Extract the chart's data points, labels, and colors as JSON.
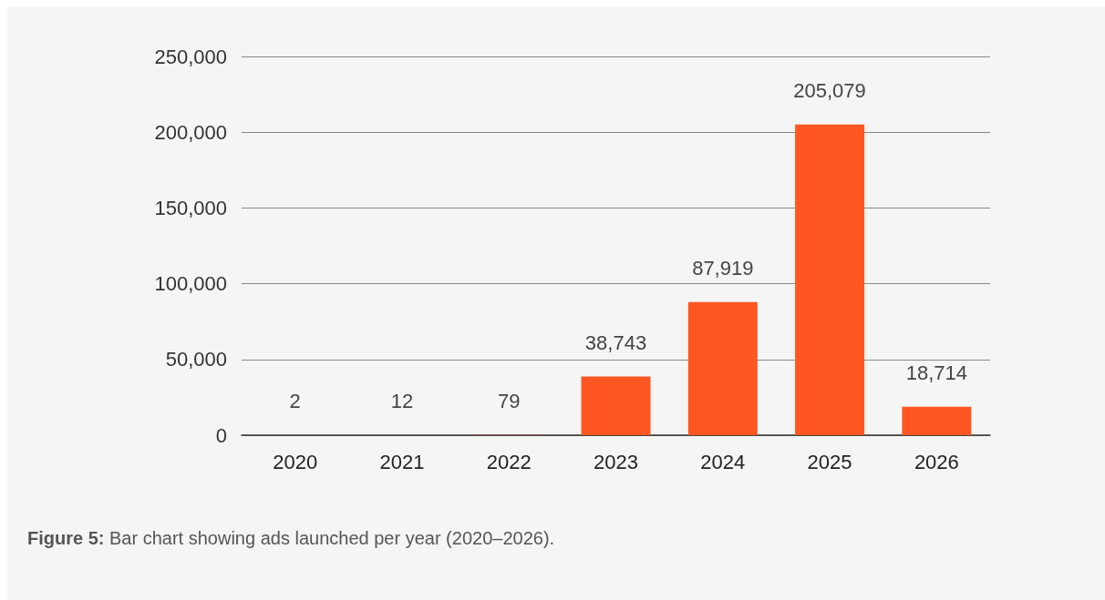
{
  "chart_data": {
    "type": "bar",
    "categories": [
      "2020",
      "2021",
      "2022",
      "2023",
      "2024",
      "2025",
      "2026"
    ],
    "values": [
      2,
      12,
      79,
      38743,
      87919,
      205079,
      18714
    ],
    "value_labels": [
      "2",
      "12",
      "79",
      "38,743",
      "87,919",
      "205,079",
      "18,714"
    ],
    "color": "#fe5722",
    "ylim": [
      0,
      250000
    ],
    "yticks": [
      0,
      {
        "value": 50000,
        "label": "50,000"
      },
      {
        "value": 100000,
        "label": "100,000"
      },
      {
        "value": 150000,
        "label": "150,000"
      },
      {
        "value": 200000,
        "label": "200,000"
      },
      {
        "value": 250000,
        "label": "250,000"
      }
    ],
    "grid": "y",
    "annotations": [
      "Figure 5: Bar chart showing ads launched per year (2020–2026)."
    ]
  }
}
